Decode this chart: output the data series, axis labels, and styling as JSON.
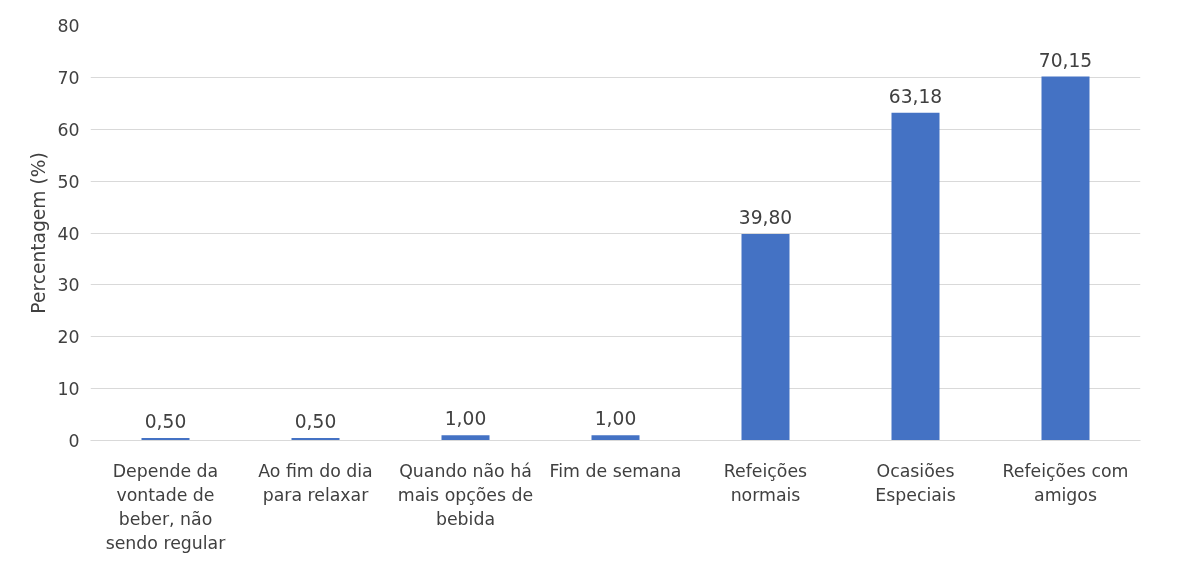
{
  "chart_data": {
    "type": "bar",
    "ylabel": "Percentagem (%)",
    "categories": [
      "Depende da vontade de beber, não sendo regular",
      "Ao fim do dia para relaxar",
      "Quando não há mais opções de bebida",
      "Fim de semana",
      "Refeições normais",
      "Ocasiões Especiais",
      "Refeições com amigos"
    ],
    "values": [
      0.5,
      0.5,
      1.0,
      1.0,
      39.8,
      63.18,
      70.15
    ],
    "value_labels": [
      "0,50",
      "0,50",
      "1,00",
      "1,00",
      "39,80",
      "63,18",
      "70,15"
    ],
    "color": "#4472c4",
    "ylim": [
      0,
      80
    ],
    "yticks": [
      0,
      10,
      20,
      30,
      40,
      50,
      60,
      70,
      80
    ],
    "grid": "y"
  }
}
